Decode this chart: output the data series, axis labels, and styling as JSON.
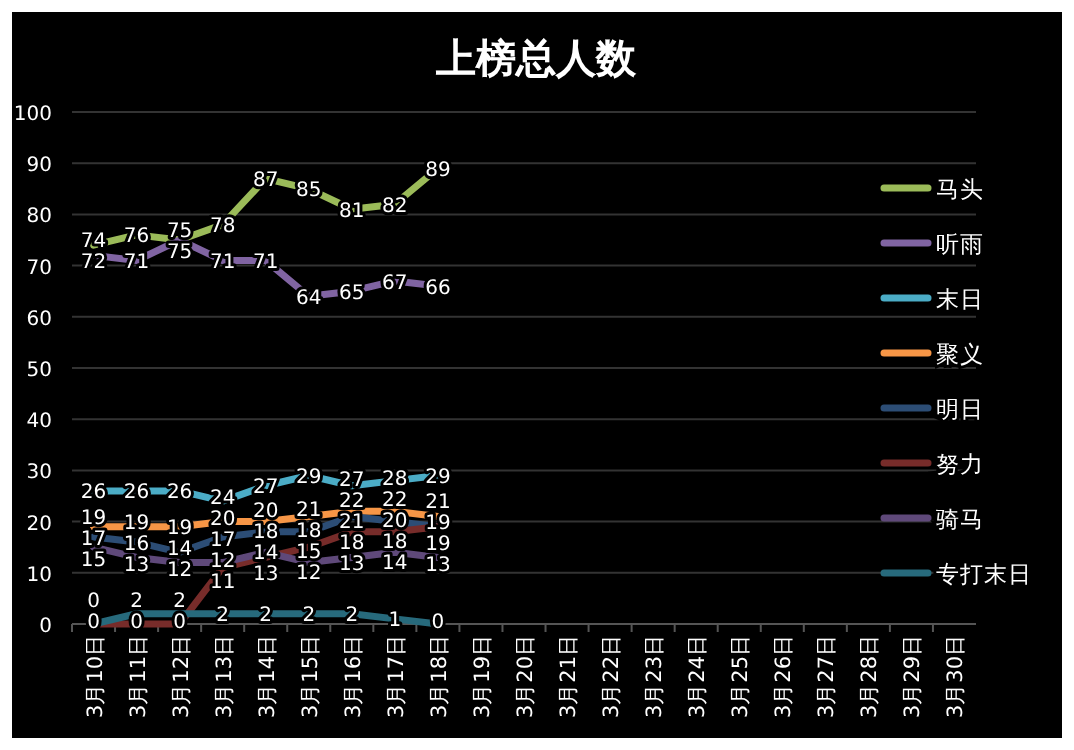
{
  "chart_data": {
    "type": "line",
    "title": "上榜总人数",
    "categories": [
      "3月10日",
      "3月11日",
      "3月12日",
      "3月13日",
      "3月14日",
      "3月15日",
      "3月16日",
      "3月17日",
      "3月18日",
      "3月19日",
      "3月20日",
      "3月21日",
      "3月22日",
      "3月23日",
      "3月24日",
      "3月25日",
      "3月26日",
      "3月27日",
      "3月28日",
      "3月29日",
      "3月30日"
    ],
    "series": [
      {
        "name": "马头",
        "color": "#9bbb59",
        "values": [
          74,
          76,
          75,
          78,
          87,
          85,
          81,
          82,
          89,
          null,
          null,
          null,
          null,
          null,
          null,
          null,
          null,
          null,
          null,
          null,
          null
        ]
      },
      {
        "name": "听雨",
        "color": "#8064a2",
        "values": [
          72,
          71,
          75,
          71,
          71,
          64,
          65,
          67,
          66,
          null,
          null,
          null,
          null,
          null,
          null,
          null,
          null,
          null,
          null,
          null,
          null
        ]
      },
      {
        "name": "末日",
        "color": "#4bacc6",
        "values": [
          26,
          26,
          26,
          24,
          27,
          29,
          27,
          28,
          29,
          null,
          null,
          null,
          null,
          null,
          null,
          null,
          null,
          null,
          null,
          null,
          null
        ]
      },
      {
        "name": "聚义",
        "color": "#f79646",
        "values": [
          19,
          19,
          19,
          20,
          20,
          21,
          22,
          22,
          21,
          null,
          null,
          null,
          null,
          null,
          null,
          null,
          null,
          null,
          null,
          null,
          null
        ]
      },
      {
        "name": "明日",
        "color": "#2c4d75",
        "values": [
          17,
          16,
          14,
          17,
          18,
          18,
          21,
          20,
          19,
          null,
          null,
          null,
          null,
          null,
          null,
          null,
          null,
          null,
          null,
          null,
          null
        ]
      },
      {
        "name": "努力",
        "color": "#772c2a",
        "values": [
          0,
          0,
          0,
          11,
          13,
          15,
          18,
          18,
          19,
          null,
          null,
          null,
          null,
          null,
          null,
          null,
          null,
          null,
          null,
          null,
          null
        ]
      },
      {
        "name": "骑马",
        "color": "#5f497a",
        "values": [
          15,
          13,
          12,
          12,
          14,
          12,
          13,
          14,
          13,
          null,
          null,
          null,
          null,
          null,
          null,
          null,
          null,
          null,
          null,
          null,
          null
        ]
      },
      {
        "name": "专打末日",
        "color": "#276a7c",
        "values": [
          0,
          2,
          2,
          2,
          2,
          2,
          2,
          1,
          0,
          null,
          null,
          null,
          null,
          null,
          null,
          null,
          null,
          null,
          null,
          null,
          null
        ]
      }
    ],
    "ylim": [
      0,
      100
    ],
    "yticks": [
      0,
      10,
      20,
      30,
      40,
      50,
      60,
      70,
      80,
      90,
      100
    ],
    "grid": "y",
    "legend": "right",
    "data_labels": true,
    "marker": "none",
    "line_style": "solid"
  }
}
